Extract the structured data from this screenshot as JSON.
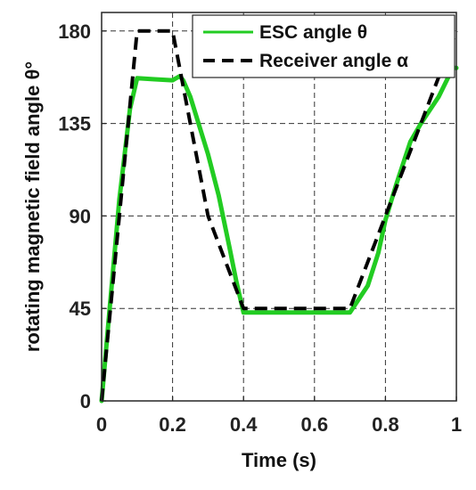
{
  "chart_data": {
    "type": "line",
    "title": "",
    "xlabel": "Time (s)",
    "ylabel": "rotating magnetic field angle θ°",
    "xlim": [
      0,
      1
    ],
    "ylim": [
      0,
      189
    ],
    "xticks": [
      0,
      0.2,
      0.4,
      0.6,
      0.8,
      1
    ],
    "xtick_labels": [
      "0",
      "0.2",
      "0.4",
      "0.6",
      "0.8",
      "1"
    ],
    "yticks": [
      0,
      45,
      90,
      135,
      180
    ],
    "ytick_labels": [
      "0",
      "45",
      "90",
      "135",
      "180"
    ],
    "grid": true,
    "legend_position": "top-right",
    "series": [
      {
        "name": "ESC angle θ",
        "color": "#22cc22",
        "style": "solid",
        "x": [
          0,
          0.02,
          0.05,
          0.08,
          0.1,
          0.15,
          0.2,
          0.22,
          0.23,
          0.25,
          0.3,
          0.33,
          0.36,
          0.38,
          0.4,
          0.5,
          0.6,
          0.7,
          0.75,
          0.78,
          0.8,
          0.83,
          0.87,
          0.9,
          0.95,
          0.99,
          1.0
        ],
        "y": [
          0,
          40,
          98,
          142,
          157,
          156.5,
          156,
          158,
          156,
          148,
          120,
          100,
          75,
          58,
          43,
          43,
          43,
          43,
          56,
          72,
          88,
          105,
          126,
          135,
          148,
          162,
          162
        ]
      },
      {
        "name": "Receiver angle α",
        "color": "#000000",
        "style": "dashed",
        "x": [
          0,
          0.1,
          0.2,
          0.3,
          0.4,
          0.5,
          0.6,
          0.7,
          0.8,
          0.9,
          1.0
        ],
        "y": [
          0,
          180,
          180,
          90,
          45,
          45,
          45,
          45,
          90,
          135,
          180
        ]
      }
    ]
  }
}
